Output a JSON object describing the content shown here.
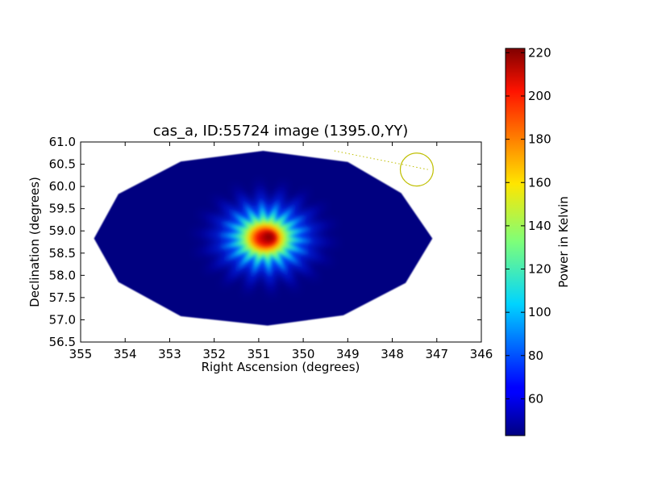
{
  "chart_data": {
    "type": "heatmap",
    "title": "cas_a, ID:55724 image (1395.0,YY)",
    "xlabel": "Right Ascension (degrees)",
    "ylabel": "Declination (degrees)",
    "xlim": [
      355,
      346
    ],
    "ylim": [
      56.5,
      61.0
    ],
    "x_ticks": [
      355,
      354,
      353,
      352,
      351,
      350,
      349,
      348,
      347,
      346
    ],
    "x_tick_labels": [
      "355",
      "354",
      "353",
      "352",
      "351",
      "350",
      "349",
      "348",
      "347",
      "346"
    ],
    "y_ticks": [
      56.5,
      57.0,
      57.5,
      58.0,
      58.5,
      59.0,
      59.5,
      60.0,
      60.5,
      61.0
    ],
    "y_tick_labels": [
      "56.5",
      "57.0",
      "57.5",
      "58.0",
      "58.5",
      "59.0",
      "59.5",
      "60.0",
      "60.5",
      "61.0"
    ],
    "colorscale": "jet",
    "background_value": 43,
    "footprint_vertices": [
      [
        354.7,
        58.83
      ],
      [
        354.15,
        59.83
      ],
      [
        352.75,
        60.56
      ],
      [
        350.9,
        60.8
      ],
      [
        349.0,
        60.55
      ],
      [
        347.8,
        59.85
      ],
      [
        347.1,
        58.83
      ],
      [
        347.7,
        57.83
      ],
      [
        349.1,
        57.1
      ],
      [
        350.8,
        56.87
      ],
      [
        352.75,
        57.08
      ],
      [
        354.15,
        57.85
      ]
    ],
    "source": {
      "ra": 350.85,
      "dec": 58.84,
      "peak": 222
    },
    "spoke_angles_deg": [
      0,
      20,
      40,
      60,
      80,
      100,
      120,
      140,
      160,
      180,
      200,
      220,
      240,
      260,
      280,
      300,
      320,
      340
    ],
    "beam_circle": {
      "ra": 347.45,
      "dec": 60.38,
      "radius_deg": 0.37,
      "color": "#bfbf00"
    },
    "beam_line": {
      "from": [
        349.3,
        60.8
      ],
      "to": [
        347.2,
        60.38
      ],
      "color": "#bfbf00"
    },
    "colorbar": {
      "label": "Power in Kelvin",
      "min": 43,
      "max": 222,
      "ticks": [
        60,
        80,
        100,
        120,
        140,
        160,
        180,
        200,
        220
      ],
      "tick_labels": [
        "60",
        "80",
        "100",
        "120",
        "140",
        "160",
        "180",
        "200",
        "220"
      ]
    }
  }
}
